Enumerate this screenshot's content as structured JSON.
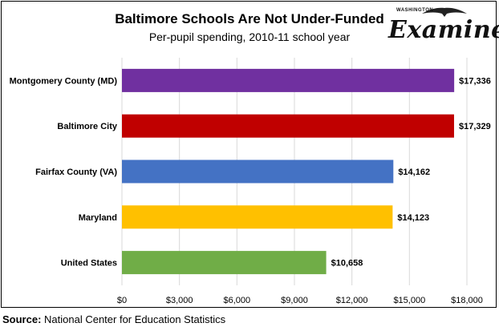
{
  "header": {
    "title": "Baltimore Schools Are Not Under-Funded",
    "subtitle": "Per-pupil spending, 2010-11 school year"
  },
  "logo": {
    "small_text": "WASHINGTON",
    "name": "Examiner",
    "icon": "eagle-icon"
  },
  "footer": {
    "source_label": "Source:",
    "source_text": " National Center for Education Statistics"
  },
  "chart_data": {
    "type": "bar",
    "orientation": "horizontal",
    "title": "Baltimore Schools Are Not Under-Funded",
    "subtitle": "Per-pupil spending, 2010-11 school year",
    "categories": [
      "Montgomery County (MD)",
      "Baltimore City",
      "Fairfax County (VA)",
      "Maryland",
      "United States"
    ],
    "values": [
      17336,
      17329,
      14162,
      14123,
      10658
    ],
    "value_labels": [
      "$17,336",
      "$17,329",
      "$14,162",
      "$14,123",
      "$10,658"
    ],
    "colors": [
      "#7030a0",
      "#c00000",
      "#4472c4",
      "#ffc000",
      "#70ad47"
    ],
    "xlim": [
      0,
      18000
    ],
    "x_ticks": [
      0,
      3000,
      6000,
      9000,
      12000,
      15000,
      18000
    ],
    "x_tick_labels": [
      "$0",
      "$3,000",
      "$6,000",
      "$9,000",
      "$12,000",
      "$15,000",
      "$18,000"
    ],
    "grid": true,
    "xlabel": "",
    "ylabel": ""
  }
}
